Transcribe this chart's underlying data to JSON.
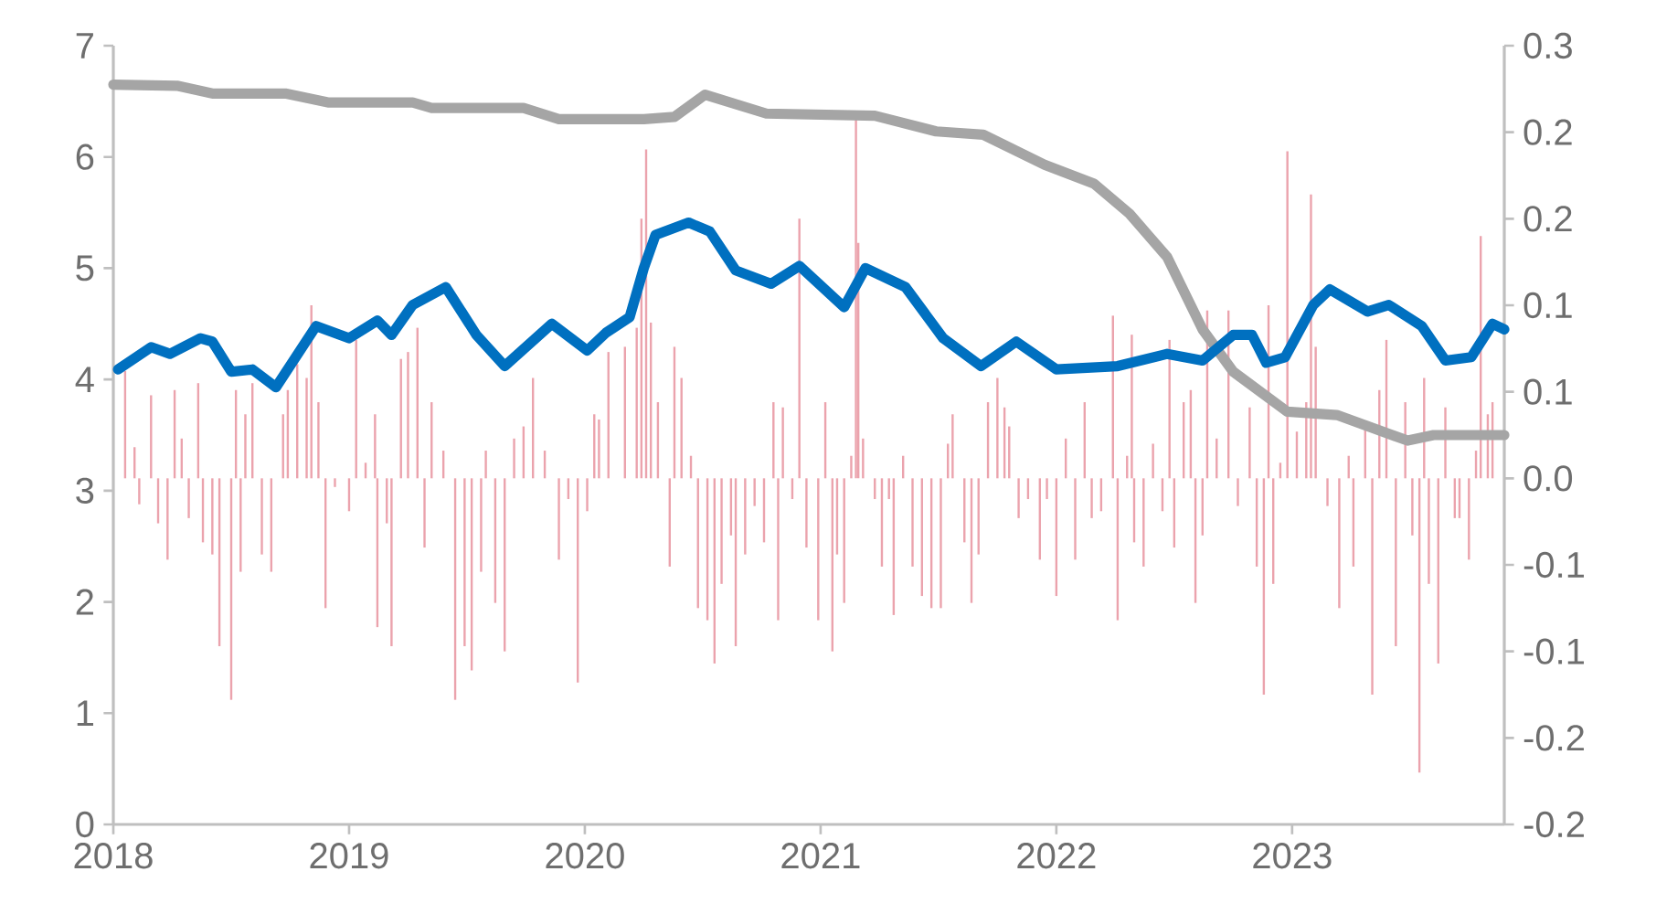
{
  "chart_data": {
    "type": "line",
    "xlim": [
      2018,
      2023.9
    ],
    "xticks": [
      2018,
      2019,
      2020,
      2021,
      2022,
      2023
    ],
    "ylim": [
      0,
      7
    ],
    "yticks": [
      0,
      1,
      2,
      3,
      4,
      5,
      6,
      7
    ],
    "y2lim": [
      -0.2,
      0.25
    ],
    "y2ticks": [
      {
        "value": -0.2,
        "label": "-0.2"
      },
      {
        "value": -0.15,
        "label": "-0.2"
      },
      {
        "value": -0.1,
        "label": "-0.1"
      },
      {
        "value": -0.05,
        "label": "-0.1"
      },
      {
        "value": 0,
        "label": "0.0"
      },
      {
        "value": 0.05,
        "label": "0.1"
      },
      {
        "value": 0.1,
        "label": "0.1"
      },
      {
        "value": 0.15,
        "label": "0.2"
      },
      {
        "value": 0.2,
        "label": "0.2"
      },
      {
        "value": 0.25,
        "label": "0.3"
      }
    ],
    "series": [
      {
        "type": "bar",
        "axis": "y2",
        "color": "#eba3ad",
        "x": [
          2018.05,
          2018.09,
          2018.11,
          2018.16,
          2018.19,
          2018.23,
          2018.26,
          2018.29,
          2018.32,
          2018.36,
          2018.38,
          2018.42,
          2018.45,
          2018.5,
          2018.52,
          2018.54,
          2018.56,
          2018.59,
          2018.63,
          2018.67,
          2018.72,
          2018.74,
          2018.78,
          2018.82,
          2018.84,
          2018.87,
          2018.9,
          2018.94,
          2019.0,
          2019.03,
          2019.07,
          2019.11,
          2019.12,
          2019.16,
          2019.18,
          2019.22,
          2019.25,
          2019.29,
          2019.32,
          2019.35,
          2019.4,
          2019.45,
          2019.49,
          2019.52,
          2019.56,
          2019.58,
          2019.62,
          2019.66,
          2019.7,
          2019.74,
          2019.78,
          2019.83,
          2019.89,
          2019.93,
          2019.97,
          2020.01,
          2020.04,
          2020.06,
          2020.1,
          2020.17,
          2020.22,
          2020.24,
          2020.26,
          2020.28,
          2020.31,
          2020.36,
          2020.38,
          2020.41,
          2020.45,
          2020.48,
          2020.52,
          2020.55,
          2020.58,
          2020.62,
          2020.64,
          2020.68,
          2020.72,
          2020.76,
          2020.8,
          2020.82,
          2020.84,
          2020.88,
          2020.91,
          2020.94,
          2020.99,
          2021.02,
          2021.05,
          2021.07,
          2021.1,
          2021.13,
          2021.15,
          2021.16,
          2021.18,
          2021.23,
          2021.26,
          2021.29,
          2021.31,
          2021.35,
          2021.39,
          2021.43,
          2021.47,
          2021.51,
          2021.54,
          2021.56,
          2021.61,
          2021.64,
          2021.67,
          2021.71,
          2021.75,
          2021.78,
          2021.8,
          2021.84,
          2021.88,
          2021.93,
          2021.96,
          2022.0,
          2022.04,
          2022.08,
          2022.12,
          2022.15,
          2022.19,
          2022.24,
          2022.26,
          2022.3,
          2022.32,
          2022.33,
          2022.37,
          2022.41,
          2022.45,
          2022.48,
          2022.5,
          2022.54,
          2022.57,
          2022.59,
          2022.62,
          2022.64,
          2022.68,
          2022.73,
          2022.77,
          2022.82,
          2022.85,
          2022.88,
          2022.9,
          2022.92,
          2022.95,
          2022.98,
          2023.02,
          2023.06,
          2023.08,
          2023.1,
          2023.15,
          2023.2,
          2023.24,
          2023.26,
          2023.31,
          2023.34,
          2023.37,
          2023.4,
          2023.44,
          2023.48,
          2023.51,
          2023.54,
          2023.56,
          2023.58,
          2023.62,
          2023.65,
          2023.69,
          2023.71,
          2023.75,
          2023.78,
          2023.8,
          2023.83,
          2023.85
        ],
        "values": [
          0.062,
          0.018,
          -0.015,
          0.048,
          -0.026,
          -0.047,
          0.051,
          0.023,
          -0.023,
          0.055,
          -0.037,
          -0.044,
          -0.097,
          -0.128,
          0.051,
          -0.054,
          0.037,
          0.055,
          -0.044,
          -0.054,
          0.037,
          0.051,
          0.066,
          0.058,
          0.1,
          0.044,
          -0.075,
          -0.005,
          -0.019,
          0.08,
          0.009,
          0.037,
          -0.086,
          -0.026,
          -0.097,
          0.069,
          0.073,
          0.087,
          -0.04,
          0.044,
          0.016,
          -0.128,
          -0.097,
          -0.111,
          -0.054,
          0.016,
          -0.072,
          -0.1,
          0.023,
          0.03,
          0.058,
          0.016,
          -0.047,
          -0.012,
          -0.118,
          -0.019,
          0.037,
          0.034,
          0.073,
          0.076,
          0.087,
          0.15,
          0.19,
          0.09,
          0.044,
          -0.051,
          0.076,
          0.058,
          0.013,
          -0.075,
          -0.082,
          -0.107,
          -0.061,
          -0.033,
          -0.097,
          -0.044,
          -0.016,
          -0.037,
          0.044,
          -0.082,
          0.041,
          -0.012,
          0.15,
          -0.04,
          -0.082,
          0.044,
          -0.1,
          -0.044,
          -0.072,
          0.013,
          0.21,
          0.136,
          0.023,
          -0.012,
          -0.051,
          -0.012,
          -0.079,
          0.013,
          -0.051,
          -0.068,
          -0.075,
          -0.075,
          0.02,
          0.037,
          -0.037,
          -0.072,
          -0.044,
          0.044,
          0.058,
          0.041,
          0.03,
          -0.023,
          -0.012,
          -0.047,
          -0.012,
          -0.068,
          0.023,
          -0.047,
          0.044,
          -0.023,
          -0.019,
          0.094,
          -0.082,
          0.013,
          0.083,
          -0.037,
          -0.051,
          0.02,
          -0.019,
          0.08,
          -0.04,
          0.044,
          0.051,
          -0.072,
          -0.033,
          0.097,
          0.023,
          0.097,
          -0.016,
          0.041,
          -0.051,
          -0.125,
          0.1,
          -0.061,
          0.009,
          0.189,
          0.027,
          0.044,
          0.164,
          0.076,
          -0.016,
          -0.075,
          0.013,
          -0.051,
          0.03,
          -0.125,
          0.051,
          0.08,
          -0.097,
          0.044,
          -0.033,
          -0.17,
          0.058,
          -0.061,
          -0.107,
          0.041,
          -0.023,
          -0.023,
          -0.047,
          0.016,
          0.14,
          0.037,
          0.044
        ]
      },
      {
        "color": "#a5a5a5",
        "x": [
          2018.0,
          2018.27,
          2018.42,
          2018.73,
          2018.91,
          2019.27,
          2019.35,
          2019.74,
          2019.89,
          2020.25,
          2020.38,
          2020.51,
          2020.77,
          2021.23,
          2021.49,
          2021.69,
          2021.95,
          2022.16,
          2022.31,
          2022.47,
          2022.62,
          2022.75,
          2022.98,
          2023.19,
          2023.49,
          2023.6,
          2023.9
        ],
        "values": [
          6.65,
          6.64,
          6.57,
          6.57,
          6.49,
          6.49,
          6.44,
          6.44,
          6.34,
          6.34,
          6.36,
          6.56,
          6.39,
          6.37,
          6.23,
          6.2,
          5.93,
          5.76,
          5.49,
          5.1,
          4.45,
          4.07,
          3.71,
          3.68,
          3.45,
          3.5,
          3.5
        ]
      },
      {
        "color": "#0070c0",
        "x": [
          2018.02,
          2018.16,
          2018.24,
          2018.37,
          2018.42,
          2018.5,
          2018.59,
          2018.69,
          2018.86,
          2019.0,
          2019.12,
          2019.18,
          2019.27,
          2019.41,
          2019.54,
          2019.66,
          2019.86,
          2020.01,
          2020.09,
          2020.19,
          2020.25,
          2020.3,
          2020.44,
          2020.53,
          2020.64,
          2020.79,
          2020.91,
          2021.1,
          2021.19,
          2021.36,
          2021.52,
          2021.68,
          2021.83,
          2022.0,
          2022.26,
          2022.47,
          2022.62,
          2022.75,
          2022.83,
          2022.89,
          2022.97,
          2023.09,
          2023.16,
          2023.32,
          2023.41,
          2023.55,
          2023.65,
          2023.76,
          2023.85,
          2023.9
        ],
        "values": [
          4.09,
          4.29,
          4.23,
          4.37,
          4.34,
          4.07,
          4.09,
          3.93,
          4.48,
          4.37,
          4.53,
          4.4,
          4.67,
          4.83,
          4.4,
          4.12,
          4.5,
          4.26,
          4.42,
          4.56,
          5.0,
          5.3,
          5.41,
          5.33,
          4.98,
          4.86,
          5.02,
          4.65,
          5.0,
          4.83,
          4.37,
          4.12,
          4.34,
          4.09,
          4.12,
          4.23,
          4.17,
          4.4,
          4.4,
          4.15,
          4.2,
          4.67,
          4.81,
          4.61,
          4.67,
          4.48,
          4.17,
          4.2,
          4.5,
          4.45
        ]
      }
    ]
  }
}
